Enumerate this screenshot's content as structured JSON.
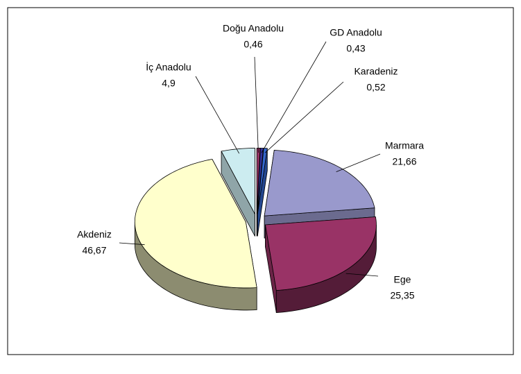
{
  "chart_data": {
    "type": "pie3d",
    "categories": [
      "Doğu Anadolu",
      "GD Anadolu",
      "Karadeniz",
      "Marmara",
      "Ege",
      "Akdeniz",
      "İç Anadolu"
    ],
    "values": [
      0.46,
      0.43,
      0.52,
      21.66,
      25.35,
      46.67,
      4.9
    ],
    "value_labels": [
      "0,46",
      "0,43",
      "0,52",
      "21,66",
      "25,35",
      "46,67",
      "4,9"
    ],
    "colors": [
      "#993366",
      "#333399",
      "#3366cc",
      "#9999cc",
      "#993366",
      "#ffffcc",
      "#ccecf0"
    ]
  }
}
